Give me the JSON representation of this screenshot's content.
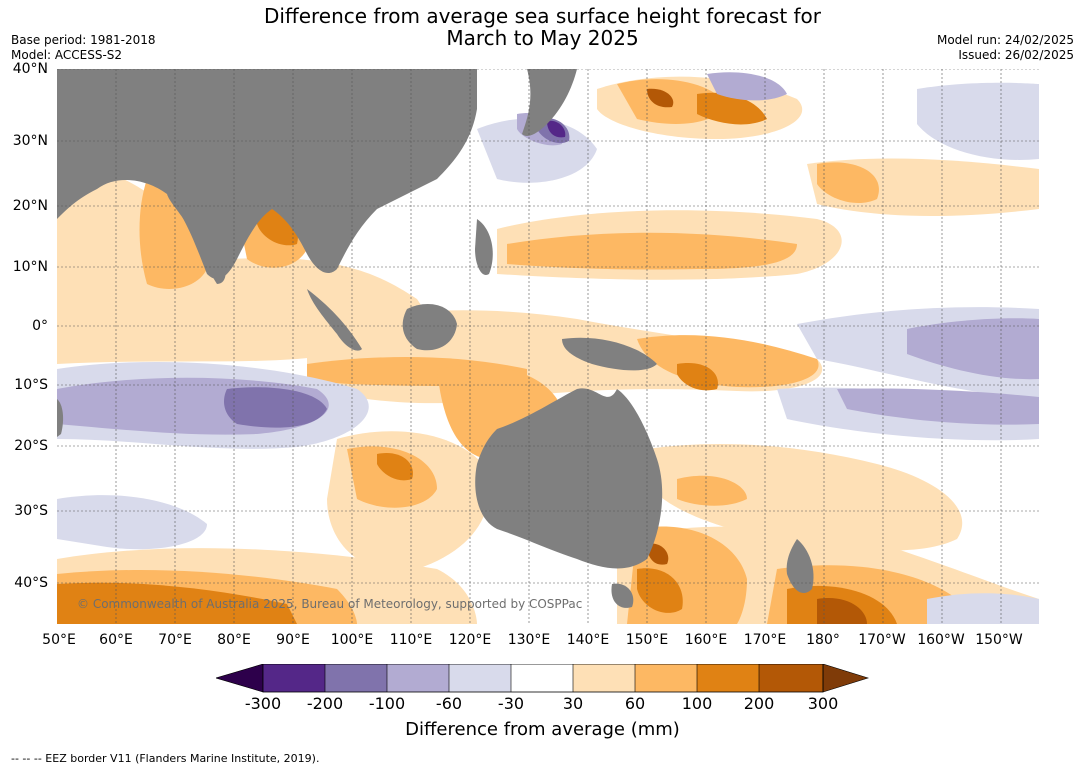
{
  "header": {
    "title_line1": "Difference from average sea surface height forecast for",
    "title_line2": "March to May 2025",
    "base_period": "Base period: 1981-2018",
    "model": "Model: ACCESS-S2",
    "model_run": "Model run: 24/02/2025",
    "issued": "Issued: 26/02/2025"
  },
  "map": {
    "lat_labels": [
      "40°N",
      "30°N",
      "20°N",
      "10°N",
      "0°",
      "10°S",
      "20°S",
      "30°S",
      "40°S"
    ],
    "lon_labels": [
      "50°E",
      "60°E",
      "70°E",
      "80°E",
      "90°E",
      "100°E",
      "110°E",
      "120°E",
      "130°E",
      "140°E",
      "150°E",
      "160°E",
      "170°E",
      "180°",
      "170°W",
      "160°W",
      "150°W"
    ],
    "copyright": "© Commonwealth of Australia 2025, Bureau of Meteorology, supported by COSPPac",
    "colors": {
      "land": "#808080",
      "neg_300": "#2d004b",
      "neg_200": "#542788",
      "neg_100": "#8073ac",
      "neg_60": "#b2abd2",
      "neg_30": "#d8daeb",
      "neutral": "#ffffff",
      "pos_30": "#fee0b6",
      "pos_60": "#fdb863",
      "pos_100": "#e08214",
      "pos_200": "#b35806",
      "pos_300": "#7f3b08"
    }
  },
  "colorbar": {
    "ticks": [
      "-300",
      "-200",
      "-100",
      "-60",
      "-30",
      "30",
      "60",
      "100",
      "200",
      "300"
    ],
    "label": "Difference from average (mm)"
  },
  "footnote": "--  --  -- EEZ border V11 (Flanders Marine Institute, 2019)."
}
